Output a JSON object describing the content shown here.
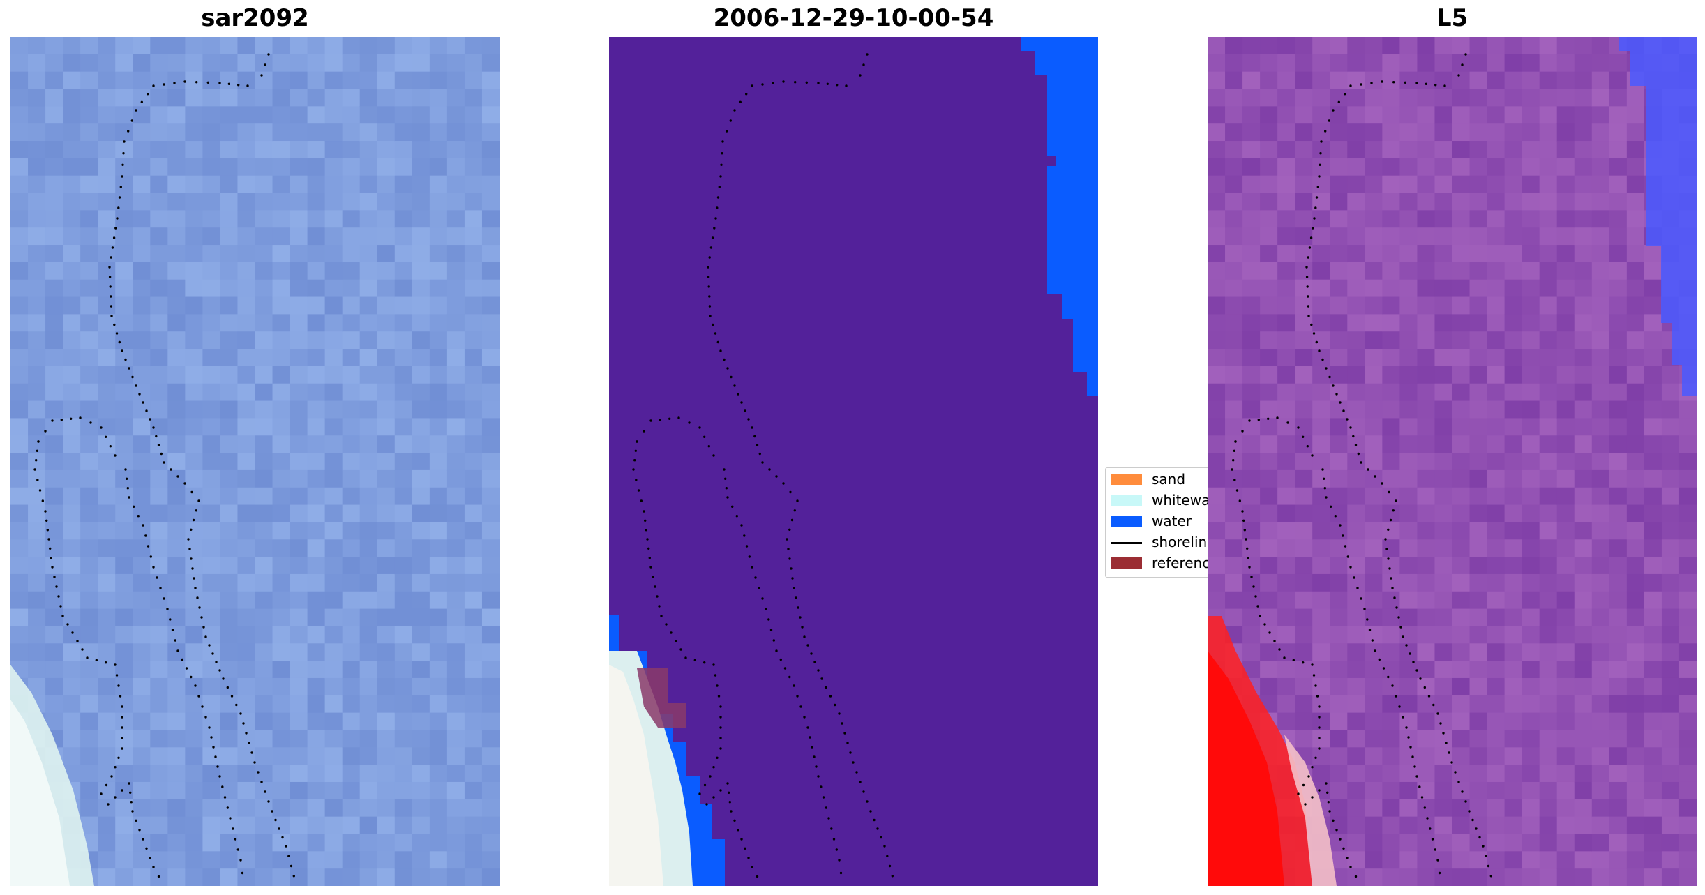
{
  "panels": [
    {
      "title": "sar2092",
      "image": "rgb-satellite"
    },
    {
      "title": "2006-12-29-10-00-54",
      "image": "classification"
    },
    {
      "title": "L5",
      "image": "index-map"
    }
  ],
  "legend": {
    "items": [
      {
        "label": "sand",
        "color": "#ff8c3c",
        "kind": "patch"
      },
      {
        "label": "whitewater",
        "color": "#c8f8f8",
        "kind": "patch"
      },
      {
        "label": "water",
        "color": "#0a5cff",
        "kind": "patch"
      },
      {
        "label": "shoreline",
        "color": "#000000",
        "kind": "line"
      },
      {
        "label": "reference",
        "color": "#9b2d33",
        "kind": "patch"
      }
    ]
  },
  "colors": {
    "satellite_base": "#7f9ee0",
    "classified_background": "#53219a",
    "water": "#0a5cff",
    "index_base": "#8f4fb0",
    "index_high": "#ff0a0a",
    "index_low": "#3a3aff"
  }
}
